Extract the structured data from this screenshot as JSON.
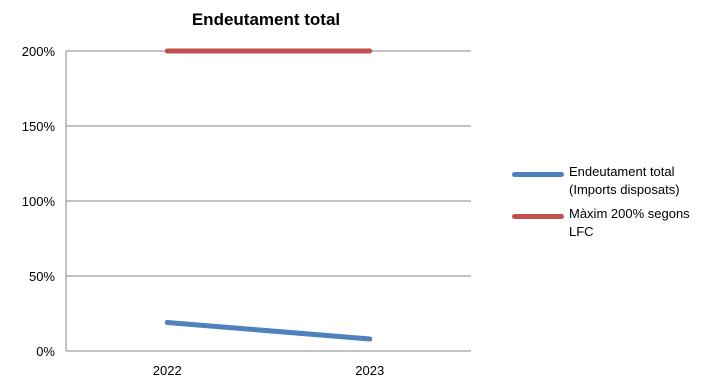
{
  "chart_data": {
    "type": "line",
    "title": "Endeutament total",
    "categories": [
      "2022",
      "2023"
    ],
    "ylim": [
      0,
      200
    ],
    "y_ticks": [
      "0%",
      "50%",
      "100%",
      "150%",
      "200%"
    ],
    "y_tick_values": [
      0,
      50,
      100,
      150,
      200
    ],
    "grid": true,
    "legend_position": "right",
    "series": [
      {
        "name": "Endeutament total (Imports disposats)",
        "values": [
          19,
          8
        ],
        "color": "#4f81bd"
      },
      {
        "name": "Màxim 200% segons LFC",
        "values": [
          200,
          200
        ],
        "color": "#c0504d"
      }
    ]
  }
}
